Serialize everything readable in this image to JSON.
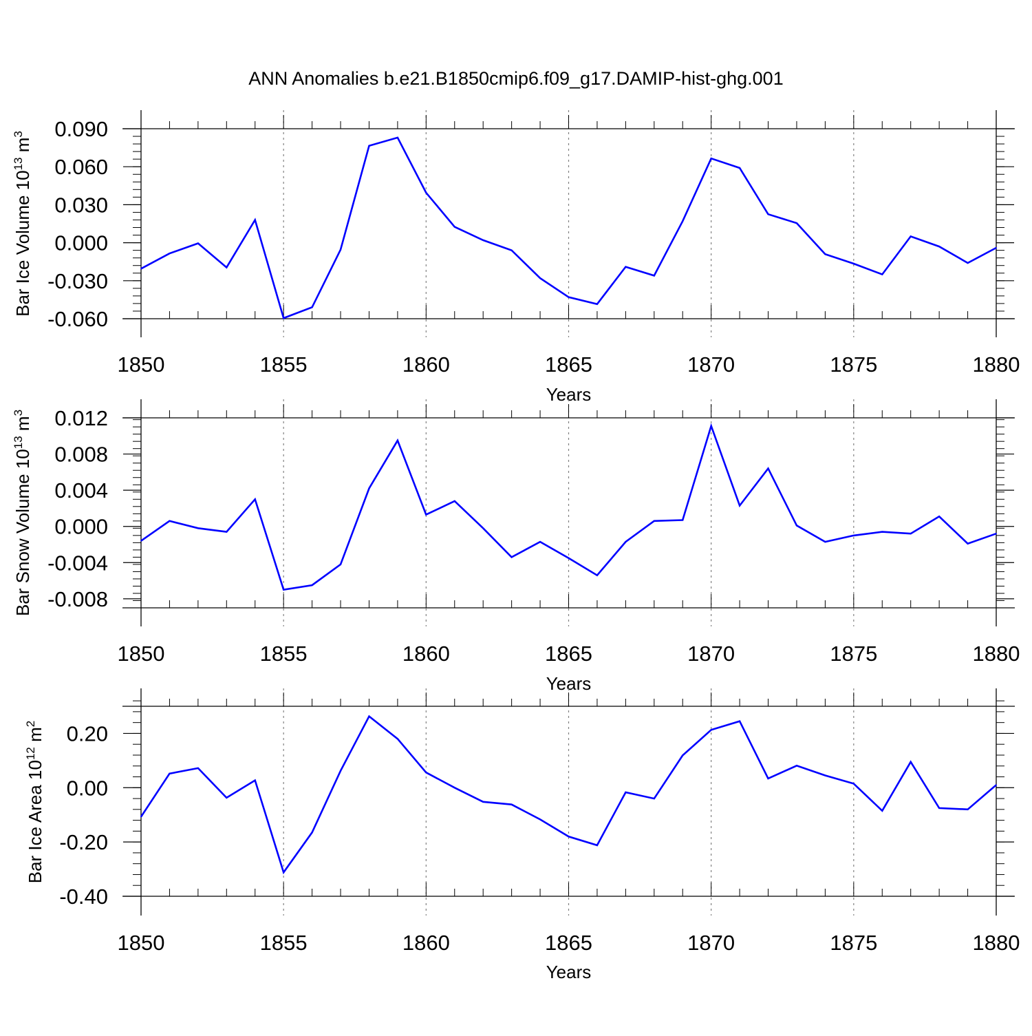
{
  "title": "ANN Anomalies b.e21.B1850cmip6.f09_g17.DAMIP-hist-ghg.001",
  "colors": {
    "series": "#0000ff",
    "axis": "#000000",
    "grid": "#808080",
    "background": "#ffffff"
  },
  "chart_data": [
    {
      "type": "line",
      "ylabel": "Bar Ice Volume 10",
      "ylabel_power": "13",
      "ylabel_unit": " m",
      "ylabel_unit_power": "3",
      "xlabel": "Years",
      "xlim": [
        1850,
        1880
      ],
      "ylim": [
        -0.06,
        0.09
      ],
      "x_ticks": [
        "1850",
        "1855",
        "1860",
        "1865",
        "1870",
        "1875",
        "1880"
      ],
      "y_ticks": [
        {
          "value": 0.09,
          "label": "0.090"
        },
        {
          "value": 0.06,
          "label": "0.060"
        },
        {
          "value": 0.03,
          "label": "0.030"
        },
        {
          "value": 0.0,
          "label": "0.000"
        },
        {
          "value": -0.03,
          "label": "-0.030"
        },
        {
          "value": -0.06,
          "label": "-0.060"
        }
      ],
      "x": [
        1850,
        1851,
        1852,
        1853,
        1854,
        1855,
        1856,
        1857,
        1858,
        1859,
        1860,
        1861,
        1862,
        1863,
        1864,
        1865,
        1866,
        1867,
        1868,
        1869,
        1870,
        1871,
        1872,
        1873,
        1874,
        1875,
        1876,
        1877,
        1878,
        1879,
        1880
      ],
      "values": [
        -0.0205,
        -0.0085,
        -0.0005,
        -0.0195,
        0.018,
        -0.0595,
        -0.051,
        -0.0055,
        0.0765,
        0.083,
        0.0395,
        0.0125,
        0.002,
        -0.006,
        -0.028,
        -0.043,
        -0.0485,
        -0.019,
        -0.026,
        0.017,
        0.0665,
        0.059,
        0.0225,
        0.0155,
        -0.009,
        -0.0165,
        -0.025,
        0.005,
        -0.003,
        -0.016,
        -0.004
      ]
    },
    {
      "type": "line",
      "ylabel": "Bar Snow Volume 10",
      "ylabel_power": "13",
      "ylabel_unit": " m",
      "ylabel_unit_power": "3",
      "xlabel": "Years",
      "xlim": [
        1850,
        1880
      ],
      "ylim": [
        -0.009,
        0.012
      ],
      "x_ticks": [
        "1850",
        "1855",
        "1860",
        "1865",
        "1870",
        "1875",
        "1880"
      ],
      "y_ticks": [
        {
          "value": 0.012,
          "label": "0.012"
        },
        {
          "value": 0.008,
          "label": "0.008"
        },
        {
          "value": 0.004,
          "label": "0.004"
        },
        {
          "value": 0.0,
          "label": "0.000"
        },
        {
          "value": -0.004,
          "label": "-0.004"
        },
        {
          "value": -0.008,
          "label": "-0.008"
        }
      ],
      "x": [
        1850,
        1851,
        1852,
        1853,
        1854,
        1855,
        1856,
        1857,
        1858,
        1859,
        1860,
        1861,
        1862,
        1863,
        1864,
        1865,
        1866,
        1867,
        1868,
        1869,
        1870,
        1871,
        1872,
        1873,
        1874,
        1875,
        1876,
        1877,
        1878,
        1879,
        1880
      ],
      "values": [
        -0.0016,
        0.0006,
        -0.0002,
        -0.0006,
        0.003,
        -0.007,
        -0.0065,
        -0.0042,
        0.0042,
        0.0095,
        0.0013,
        0.0028,
        -0.0002,
        -0.0034,
        -0.0017,
        -0.0035,
        -0.0054,
        -0.0017,
        0.0006,
        0.0007,
        0.0111,
        0.0023,
        0.0064,
        0.0001,
        -0.0017,
        -0.001,
        -0.0006,
        -0.0008,
        0.0011,
        -0.0019,
        -0.0008
      ]
    },
    {
      "type": "line",
      "ylabel": "Bar Ice Area 10",
      "ylabel_power": "12",
      "ylabel_unit": " m",
      "ylabel_unit_power": "2",
      "xlabel": "Years",
      "xlim": [
        1850,
        1880
      ],
      "ylim": [
        -0.4,
        0.3
      ],
      "x_ticks": [
        "1850",
        "1855",
        "1860",
        "1865",
        "1870",
        "1875",
        "1880"
      ],
      "y_ticks": [
        {
          "value": 0.2,
          "label": "0.20"
        },
        {
          "value": 0.0,
          "label": "0.00"
        },
        {
          "value": -0.2,
          "label": "-0.20"
        },
        {
          "value": -0.4,
          "label": "-0.40"
        }
      ],
      "x": [
        1850,
        1851,
        1852,
        1853,
        1854,
        1855,
        1856,
        1857,
        1858,
        1859,
        1860,
        1861,
        1862,
        1863,
        1864,
        1865,
        1866,
        1867,
        1868,
        1869,
        1870,
        1871,
        1872,
        1873,
        1874,
        1875,
        1876,
        1877,
        1878,
        1879,
        1880
      ],
      "values": [
        -0.107,
        0.052,
        0.072,
        -0.037,
        0.027,
        -0.312,
        -0.165,
        0.062,
        0.263,
        0.18,
        0.056,
        0.0,
        -0.052,
        -0.062,
        -0.117,
        -0.18,
        -0.212,
        -0.017,
        -0.04,
        0.119,
        0.213,
        0.245,
        0.034,
        0.081,
        0.045,
        0.015,
        -0.085,
        0.095,
        -0.075,
        -0.08,
        0.01
      ]
    }
  ]
}
